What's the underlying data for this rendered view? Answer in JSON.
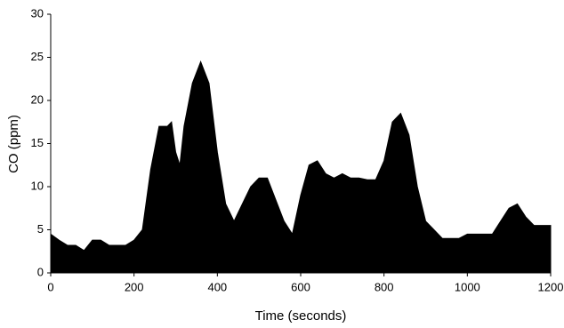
{
  "chart_data": {
    "type": "area",
    "xlabel": "Time (seconds)",
    "ylabel": "CO (ppm)",
    "color": "#000000",
    "x": [
      0,
      20,
      40,
      60,
      80,
      100,
      120,
      140,
      160,
      180,
      200,
      220,
      240,
      260,
      280,
      290,
      300,
      310,
      320,
      340,
      360,
      380,
      400,
      420,
      440,
      460,
      480,
      500,
      520,
      540,
      560,
      580,
      600,
      620,
      640,
      660,
      680,
      700,
      720,
      740,
      760,
      780,
      800,
      820,
      840,
      860,
      880,
      900,
      920,
      940,
      960,
      980,
      1000,
      1020,
      1040,
      1060,
      1080,
      1100,
      1120,
      1140,
      1160,
      1180,
      1200
    ],
    "values": [
      4.5,
      3.8,
      3.2,
      3.2,
      2.6,
      3.8,
      3.8,
      3.2,
      3.2,
      3.2,
      3.8,
      5,
      12,
      17,
      17,
      17.5,
      14,
      12.5,
      17,
      22,
      24.5,
      22,
      14,
      8,
      6,
      8,
      10,
      11,
      11,
      8.5,
      6,
      4.5,
      9,
      12.5,
      13,
      11.5,
      11,
      11.5,
      11,
      11,
      10.8,
      10.8,
      13,
      17.5,
      18.5,
      16,
      10,
      6,
      5,
      4,
      4,
      4,
      4.5,
      4.5,
      4.5,
      4.5,
      6,
      7.5,
      8,
      6.5,
      5.5,
      5.5,
      5.5
    ],
    "xlim": [
      0,
      1200
    ],
    "xticks": [
      0,
      200,
      400,
      600,
      800,
      1000,
      1200
    ],
    "ylim": [
      0,
      30
    ],
    "yticks": [
      0,
      5,
      10,
      15,
      20,
      25,
      30
    ]
  }
}
